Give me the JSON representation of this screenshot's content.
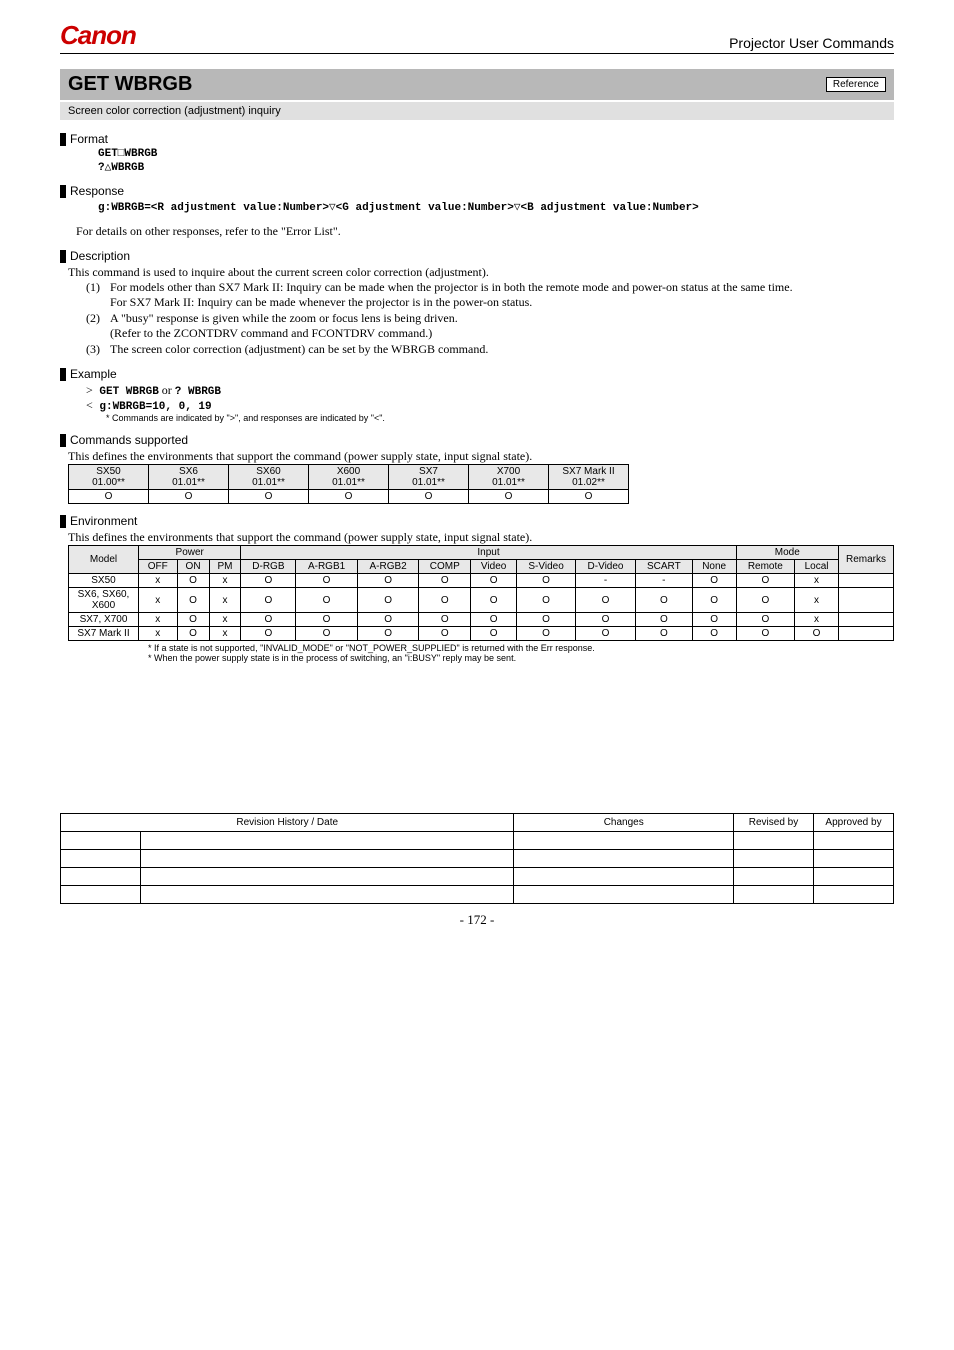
{
  "header": {
    "logo": "Canon",
    "title": "Projector User Commands"
  },
  "command": {
    "title": "GET WBRGB",
    "reference": "Reference",
    "subtitle": "Screen color correction (adjustment) inquiry"
  },
  "format": {
    "title": "Format",
    "line1": "GET□WBRGB",
    "line2": "?△WBRGB"
  },
  "response": {
    "title": "Response",
    "line": "g:WBRGB=<R adjustment value:Number>▽<G adjustment value:Number>▽<B adjustment value:Number>",
    "note": "For details on other responses, refer to the \"Error List\"."
  },
  "description": {
    "title": "Description",
    "intro": "This command is used to inquire about the current screen color correction (adjustment).",
    "items": [
      {
        "num": "(1)",
        "text": "For models other than SX7 Mark II: Inquiry can be made when the projector is in both the remote mode and power-on status at the same time.",
        "text2": "For SX7 Mark II: Inquiry can be made whenever the projector is in the power-on status."
      },
      {
        "num": "(2)",
        "text": "A \"busy\" response is given while the zoom or focus lens is being driven.",
        "text2": "(Refer to the ZCONTDRV command and FCONTDRV command.)"
      },
      {
        "num": "(3)",
        "text": "The screen color correction (adjustment) can be set by the WBRGB command."
      }
    ]
  },
  "example": {
    "title": "Example",
    "gt": ">",
    "line1a": " GET WBRGB",
    "or": " or ",
    "line1b": "? WBRGB",
    "lt": "<",
    "line2": " g:WBRGB=10, 0, 19",
    "note": "* Commands are indicated by \">\", and responses are indicated by \"<\"."
  },
  "supported": {
    "title": "Commands supported",
    "intro": "This defines the environments that support the command (power supply state, input signal state).",
    "headers": [
      {
        "name": "SX50",
        "ver": "01.00**"
      },
      {
        "name": "SX6",
        "ver": "01.01**"
      },
      {
        "name": "SX60",
        "ver": "01.01**"
      },
      {
        "name": "X600",
        "ver": "01.01**"
      },
      {
        "name": "SX7",
        "ver": "01.01**"
      },
      {
        "name": "X700",
        "ver": "01.01**"
      },
      {
        "name": "SX7 Mark II",
        "ver": "01.02**"
      }
    ],
    "row": [
      "O",
      "O",
      "O",
      "O",
      "O",
      "O",
      "O"
    ]
  },
  "environment": {
    "title": "Environment",
    "intro": "This defines the environments that support the command (power supply state, input signal state).",
    "headers": {
      "model": "Model",
      "power": "Power",
      "input": "Input",
      "mode": "Mode",
      "remarks": "Remarks",
      "off": "OFF",
      "on": "ON",
      "pm": "PM",
      "drgb": "D-RGB",
      "argb1": "A-RGB1",
      "argb2": "A-RGB2",
      "comp": "COMP",
      "video": "Video",
      "svideo": "S-Video",
      "dvideo": "D-Video",
      "scart": "SCART",
      "none": "None",
      "remote": "Remote",
      "local": "Local"
    },
    "rows": [
      {
        "model": "SX50",
        "cells": [
          "x",
          "O",
          "x",
          "O",
          "O",
          "O",
          "O",
          "O",
          "O",
          "-",
          "-",
          "O",
          "O",
          "x",
          ""
        ]
      },
      {
        "model": "SX6, SX60, X600",
        "cells": [
          "x",
          "O",
          "x",
          "O",
          "O",
          "O",
          "O",
          "O",
          "O",
          "O",
          "O",
          "O",
          "O",
          "x",
          ""
        ]
      },
      {
        "model": "SX7, X700",
        "cells": [
          "x",
          "O",
          "x",
          "O",
          "O",
          "O",
          "O",
          "O",
          "O",
          "O",
          "O",
          "O",
          "O",
          "x",
          ""
        ]
      },
      {
        "model": "SX7 Mark II",
        "cells": [
          "x",
          "O",
          "x",
          "O",
          "O",
          "O",
          "O",
          "O",
          "O",
          "O",
          "O",
          "O",
          "O",
          "O",
          ""
        ]
      }
    ],
    "foot1": "*  If a state is not supported, \"INVALID_MODE\" or \"NOT_POWER_SUPPLIED\" is returned with the Err response.",
    "foot2": "*  When the power supply state is in the process of switching, an \"i:BUSY\" reply may be sent."
  },
  "revision": {
    "headers": {
      "hist": "Revision History / Date",
      "changes": "Changes",
      "revby": "Revised by",
      "appby": "Approved by"
    }
  },
  "pagenum": "- 172 -"
}
